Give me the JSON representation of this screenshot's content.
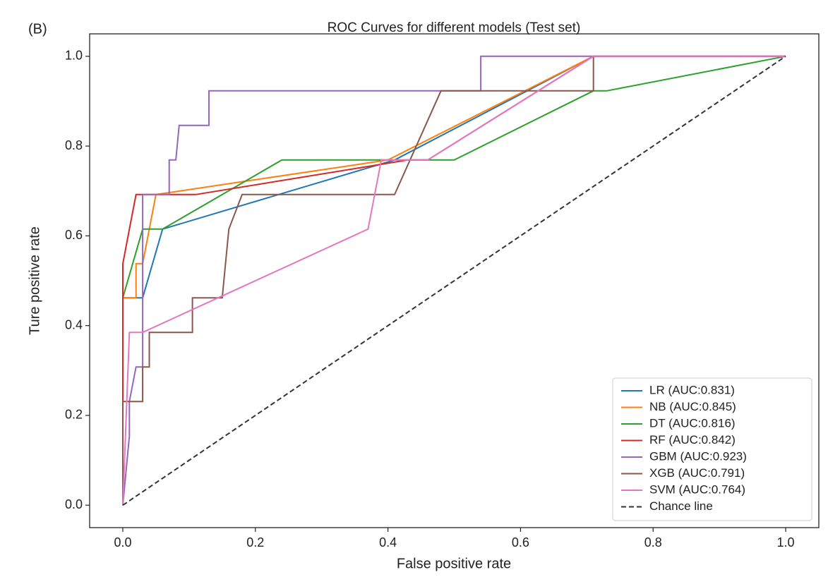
{
  "chart_data": {
    "type": "line",
    "panel_label": "(B)",
    "title": "ROC Curves for different models (Test set)",
    "x_label": "False positive rate",
    "y_label": "Ture positive rate",
    "xlim": [
      -0.05,
      1.05
    ],
    "ylim": [
      -0.05,
      1.05
    ],
    "xticks": [
      {
        "value": 0,
        "label": "0.0"
      },
      0.2,
      0.4,
      0.6,
      0.8,
      {
        "value": 1,
        "label": "1.0"
      }
    ],
    "yticks": [
      {
        "value": 0,
        "label": "0.0"
      },
      0.2,
      0.4,
      0.6,
      0.8,
      {
        "value": 1,
        "label": "1.0"
      }
    ],
    "grid": false,
    "legend": "lower right",
    "series": [
      {
        "name": "LR (AUC:0.831)",
        "color": "#1f77b4",
        "x": [
          0,
          0,
          0.03,
          0.06,
          0.41,
          0.71,
          1
        ],
        "values": [
          0,
          0.462,
          0.462,
          0.615,
          0.769,
          1,
          1
        ]
      },
      {
        "name": "NB (AUC:0.845)",
        "color": "#ff7f0e",
        "x": [
          0,
          0,
          0.02,
          0.02,
          0.03,
          0.05,
          0.4,
          0.71,
          1
        ],
        "values": [
          0,
          0.462,
          0.462,
          0.538,
          0.538,
          0.692,
          0.769,
          1,
          1
        ]
      },
      {
        "name": "DT (AUC:0.816)",
        "color": "#2ca02c",
        "x": [
          0,
          0,
          0.03,
          0.06,
          0.24,
          0.5,
          0.71,
          0.73,
          1
        ],
        "values": [
          0,
          0.462,
          0.615,
          0.615,
          0.769,
          0.769,
          0.923,
          0.923,
          1
        ]
      },
      {
        "name": "RF (AUC:0.842)",
        "color": "#d62728",
        "x": [
          0,
          0,
          0,
          0.01,
          0.02,
          0.11,
          0.43,
          0.46,
          0.71,
          1
        ],
        "values": [
          0,
          0.077,
          0.538,
          0.615,
          0.692,
          0.692,
          0.769,
          0.769,
          1,
          1
        ]
      },
      {
        "name": "GBM (AUC:0.923)",
        "color": "#9467bd",
        "x": [
          0,
          0.01,
          0.01,
          0.02,
          0.03,
          0.03,
          0.07,
          0.07,
          0.08,
          0.085,
          0.13,
          0.13,
          0.54,
          0.54,
          1
        ],
        "values": [
          0,
          0.154,
          0.231,
          0.308,
          0.308,
          0.692,
          0.692,
          0.769,
          0.769,
          0.846,
          0.846,
          0.923,
          0.923,
          1,
          1
        ]
      },
      {
        "name": "XGB (AUC:0.791)",
        "color": "#8c564b",
        "x": [
          0,
          0,
          0.03,
          0.03,
          0.04,
          0.04,
          0.105,
          0.105,
          0.15,
          0.16,
          0.18,
          0.41,
          0.48,
          0.71,
          0.71,
          1
        ],
        "values": [
          0,
          0.231,
          0.231,
          0.308,
          0.308,
          0.385,
          0.385,
          0.462,
          0.462,
          0.615,
          0.692,
          0.692,
          0.923,
          0.923,
          1,
          1
        ]
      },
      {
        "name": "SVM (AUC:0.764)",
        "color": "#e377c2",
        "x": [
          0,
          0.01,
          0.03,
          0.37,
          0.39,
          0.46,
          0.71,
          1
        ],
        "values": [
          0,
          0.385,
          0.385,
          0.615,
          0.769,
          0.769,
          1,
          1
        ]
      },
      {
        "name": "Chance line",
        "color": "#333333",
        "linestyle": "dashed",
        "x": [
          0,
          1
        ],
        "values": [
          0,
          1
        ]
      }
    ]
  }
}
